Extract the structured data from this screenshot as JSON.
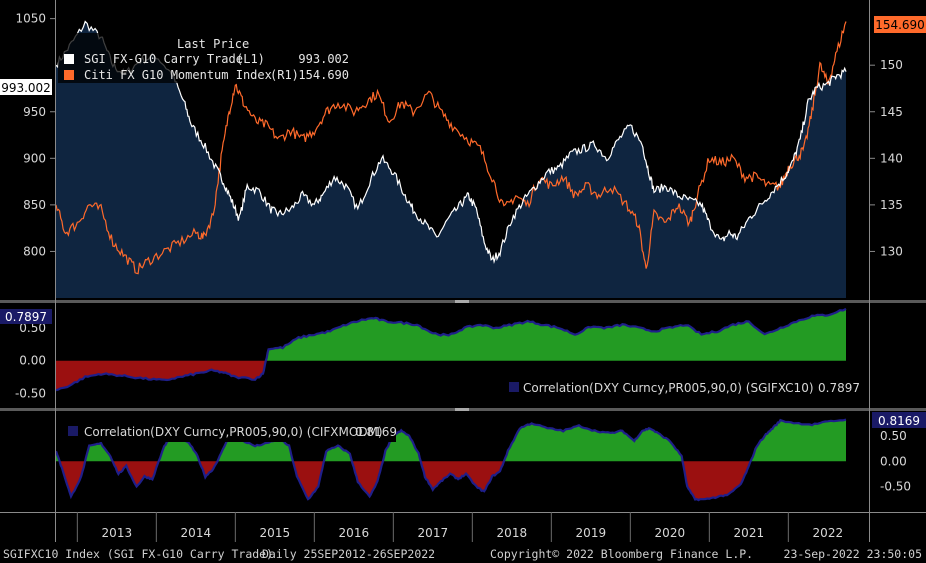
{
  "footer": {
    "security": "SGIFXC10 Index (SGI FX-G10 Carry Trade)",
    "period": "Daily 25SEP2012-26SEP2022",
    "copyright": "Copyright© 2022 Bloomberg Finance L.P.",
    "timestamp": "23-Sep-2022 23:50:05"
  },
  "colors": {
    "background": "#000000",
    "area_fill": "#0f2540",
    "sgi_line": "#ffffff",
    "citi_line": "#ff6a2b",
    "positive_fill": "#239b23",
    "negative_fill": "#9b1010",
    "corr_line": "#1f1f8a",
    "left_label_bg": "#1a1a66",
    "right_label_bg": "#ff6a2b"
  },
  "chart_data": [
    {
      "type": "line",
      "panel": "main",
      "legend_title": "Last Price",
      "legend_position": "top-left",
      "x_labels": [
        "2013",
        "2014",
        "2015",
        "2016",
        "2017",
        "2018",
        "2019",
        "2020",
        "2021",
        "2022"
      ],
      "series": [
        {
          "name": "SGI FX-G10 Carry Trade",
          "axis_tag": "(L1)",
          "last_value": "993.002",
          "axis": "left",
          "style": "white line with navy area fill",
          "points": [
            [
              2012.73,
              1000
            ],
            [
              2012.9,
              1020
            ],
            [
              2013.1,
              1045
            ],
            [
              2013.3,
              1030
            ],
            [
              2013.45,
              1000
            ],
            [
              2013.6,
              990
            ],
            [
              2013.8,
              1005
            ],
            [
              2014.0,
              1010
            ],
            [
              2014.2,
              990
            ],
            [
              2014.35,
              960
            ],
            [
              2014.45,
              935
            ],
            [
              2014.6,
              915
            ],
            [
              2014.75,
              890
            ],
            [
              2014.85,
              875
            ],
            [
              2014.95,
              855
            ],
            [
              2015.05,
              835
            ],
            [
              2015.15,
              870
            ],
            [
              2015.3,
              865
            ],
            [
              2015.45,
              845
            ],
            [
              2015.55,
              840
            ],
            [
              2015.7,
              845
            ],
            [
              2015.85,
              860
            ],
            [
              2016.0,
              850
            ],
            [
              2016.1,
              860
            ],
            [
              2016.25,
              880
            ],
            [
              2016.4,
              870
            ],
            [
              2016.55,
              845
            ],
            [
              2016.7,
              875
            ],
            [
              2016.85,
              900
            ],
            [
              2017.0,
              885
            ],
            [
              2017.15,
              860
            ],
            [
              2017.25,
              845
            ],
            [
              2017.4,
              830
            ],
            [
              2017.55,
              815
            ],
            [
              2017.7,
              835
            ],
            [
              2017.85,
              850
            ],
            [
              2017.95,
              860
            ],
            [
              2018.05,
              845
            ],
            [
              2018.15,
              810
            ],
            [
              2018.25,
              790
            ],
            [
              2018.35,
              800
            ],
            [
              2018.5,
              835
            ],
            [
              2018.65,
              855
            ],
            [
              2018.8,
              870
            ],
            [
              2018.95,
              885
            ],
            [
              2019.1,
              890
            ],
            [
              2019.25,
              905
            ],
            [
              2019.4,
              910
            ],
            [
              2019.55,
              915
            ],
            [
              2019.7,
              900
            ],
            [
              2019.85,
              920
            ],
            [
              2020.0,
              935
            ],
            [
              2020.15,
              915
            ],
            [
              2020.22,
              890
            ],
            [
              2020.3,
              865
            ],
            [
              2020.45,
              870
            ],
            [
              2020.6,
              860
            ],
            [
              2020.75,
              855
            ],
            [
              2020.9,
              850
            ],
            [
              2021.0,
              830
            ],
            [
              2021.15,
              810
            ],
            [
              2021.25,
              820
            ],
            [
              2021.35,
              815
            ],
            [
              2021.5,
              835
            ],
            [
              2021.65,
              850
            ],
            [
              2021.8,
              865
            ],
            [
              2021.95,
              880
            ],
            [
              2022.05,
              895
            ],
            [
              2022.15,
              920
            ],
            [
              2022.25,
              960
            ],
            [
              2022.35,
              975
            ],
            [
              2022.5,
              980
            ],
            [
              2022.6,
              988
            ],
            [
              2022.73,
              993
            ]
          ]
        },
        {
          "name": "Citi FX G10 Momentum Index",
          "axis_tag": "(R1)",
          "last_value": "154.690",
          "axis": "right",
          "style": "orange line",
          "points": [
            [
              2012.73,
              135
            ],
            [
              2012.85,
              132
            ],
            [
              2013.0,
              133
            ],
            [
              2013.15,
              135
            ],
            [
              2013.3,
              134.5
            ],
            [
              2013.45,
              131
            ],
            [
              2013.6,
              129.5
            ],
            [
              2013.75,
              128
            ],
            [
              2013.9,
              129
            ],
            [
              2014.1,
              130
            ],
            [
              2014.3,
              131
            ],
            [
              2014.5,
              132
            ],
            [
              2014.6,
              131.5
            ],
            [
              2014.72,
              134
            ],
            [
              2014.82,
              140
            ],
            [
              2014.92,
              145
            ],
            [
              2015.0,
              148
            ],
            [
              2015.1,
              146
            ],
            [
              2015.25,
              144
            ],
            [
              2015.4,
              143.5
            ],
            [
              2015.55,
              142
            ],
            [
              2015.7,
              143
            ],
            [
              2015.85,
              142
            ],
            [
              2016.0,
              143
            ],
            [
              2016.15,
              145
            ],
            [
              2016.3,
              146
            ],
            [
              2016.5,
              145
            ],
            [
              2016.65,
              146
            ],
            [
              2016.8,
              147
            ],
            [
              2016.95,
              144
            ],
            [
              2017.1,
              146
            ],
            [
              2017.25,
              145
            ],
            [
              2017.45,
              147
            ],
            [
              2017.6,
              145
            ],
            [
              2017.75,
              143.5
            ],
            [
              2017.95,
              142
            ],
            [
              2018.1,
              141
            ],
            [
              2018.25,
              138
            ],
            [
              2018.4,
              134.5
            ],
            [
              2018.55,
              136
            ],
            [
              2018.7,
              135
            ],
            [
              2018.85,
              138
            ],
            [
              2019.0,
              137
            ],
            [
              2019.15,
              138
            ],
            [
              2019.3,
              136
            ],
            [
              2019.45,
              137
            ],
            [
              2019.6,
              136
            ],
            [
              2019.75,
              137
            ],
            [
              2019.95,
              135
            ],
            [
              2020.1,
              133
            ],
            [
              2020.2,
              128
            ],
            [
              2020.3,
              134
            ],
            [
              2020.45,
              133
            ],
            [
              2020.6,
              135
            ],
            [
              2020.75,
              133
            ],
            [
              2020.85,
              136
            ],
            [
              2021.0,
              140
            ],
            [
              2021.15,
              139.5
            ],
            [
              2021.3,
              140
            ],
            [
              2021.45,
              138
            ],
            [
              2021.6,
              138
            ],
            [
              2021.75,
              137
            ],
            [
              2021.9,
              137
            ],
            [
              2022.0,
              139
            ],
            [
              2022.1,
              140
            ],
            [
              2022.2,
              141
            ],
            [
              2022.3,
              145
            ],
            [
              2022.4,
              150
            ],
            [
              2022.5,
              148
            ],
            [
              2022.6,
              151
            ],
            [
              2022.73,
              154.69
            ]
          ]
        }
      ],
      "left_axis": {
        "ticks": [
          "800",
          "850",
          "900",
          "950",
          "1050"
        ],
        "ylim": [
          750,
          1070
        ]
      },
      "right_axis": {
        "ticks": [
          "130",
          "135",
          "140",
          "145",
          "150"
        ],
        "ylim": [
          125,
          157
        ]
      }
    },
    {
      "type": "area",
      "panel": "corr1",
      "label": "Correlation(DXY Curncy,PR005,90,0) (SGIFXC10)",
      "last_value": "0.7897",
      "legend_position": "bottom-right",
      "axis": "left",
      "ticks": [
        "0.50",
        "0.00",
        "-0.50"
      ],
      "ylim": [
        -0.6,
        0.85
      ],
      "points": [
        [
          2012.73,
          -0.45
        ],
        [
          2012.9,
          -0.38
        ],
        [
          2013.1,
          -0.25
        ],
        [
          2013.3,
          -0.2
        ],
        [
          2013.5,
          -0.22
        ],
        [
          2013.7,
          -0.25
        ],
        [
          2013.9,
          -0.28
        ],
        [
          2014.1,
          -0.3
        ],
        [
          2014.3,
          -0.25
        ],
        [
          2014.5,
          -0.2
        ],
        [
          2014.7,
          -0.15
        ],
        [
          2014.85,
          -0.18
        ],
        [
          2015.0,
          -0.25
        ],
        [
          2015.25,
          -0.28
        ],
        [
          2015.35,
          -0.2
        ],
        [
          2015.42,
          0.18
        ],
        [
          2015.6,
          0.2
        ],
        [
          2015.8,
          0.35
        ],
        [
          2016.0,
          0.4
        ],
        [
          2016.2,
          0.45
        ],
        [
          2016.4,
          0.55
        ],
        [
          2016.6,
          0.62
        ],
        [
          2016.75,
          0.65
        ],
        [
          2016.9,
          0.6
        ],
        [
          2017.1,
          0.58
        ],
        [
          2017.3,
          0.55
        ],
        [
          2017.5,
          0.42
        ],
        [
          2017.7,
          0.38
        ],
        [
          2017.9,
          0.5
        ],
        [
          2018.1,
          0.55
        ],
        [
          2018.3,
          0.5
        ],
        [
          2018.5,
          0.55
        ],
        [
          2018.7,
          0.6
        ],
        [
          2018.9,
          0.55
        ],
        [
          2019.1,
          0.5
        ],
        [
          2019.3,
          0.4
        ],
        [
          2019.5,
          0.52
        ],
        [
          2019.7,
          0.5
        ],
        [
          2019.9,
          0.55
        ],
        [
          2020.1,
          0.5
        ],
        [
          2020.3,
          0.45
        ],
        [
          2020.5,
          0.5
        ],
        [
          2020.7,
          0.55
        ],
        [
          2020.9,
          0.4
        ],
        [
          2021.1,
          0.45
        ],
        [
          2021.3,
          0.55
        ],
        [
          2021.5,
          0.6
        ],
        [
          2021.7,
          0.4
        ],
        [
          2021.9,
          0.5
        ],
        [
          2022.1,
          0.6
        ],
        [
          2022.3,
          0.68
        ],
        [
          2022.5,
          0.7
        ],
        [
          2022.73,
          0.79
        ]
      ]
    },
    {
      "type": "area",
      "panel": "corr2",
      "label": "Correlation(DXY Curncy,PR005,90,0) (CIFXMODM)",
      "last_value": "0.8169",
      "legend_position": "top-left",
      "axis": "right",
      "ticks": [
        "0.50",
        "0.00",
        "-0.50"
      ],
      "ylim": [
        -0.9,
        0.95
      ],
      "points": [
        [
          2012.73,
          0.2
        ],
        [
          2012.82,
          -0.2
        ],
        [
          2012.92,
          -0.7
        ],
        [
          2013.05,
          -0.3
        ],
        [
          2013.15,
          0.3
        ],
        [
          2013.3,
          0.35
        ],
        [
          2013.42,
          0.1
        ],
        [
          2013.52,
          -0.25
        ],
        [
          2013.62,
          -0.1
        ],
        [
          2013.75,
          -0.5
        ],
        [
          2013.85,
          -0.3
        ],
        [
          2013.95,
          -0.35
        ],
        [
          2014.1,
          0.3
        ],
        [
          2014.2,
          0.5
        ],
        [
          2014.3,
          0.45
        ],
        [
          2014.42,
          0.35
        ],
        [
          2014.52,
          0.1
        ],
        [
          2014.62,
          -0.3
        ],
        [
          2014.72,
          -0.15
        ],
        [
          2014.82,
          0.15
        ],
        [
          2014.95,
          0.6
        ],
        [
          2015.1,
          0.4
        ],
        [
          2015.25,
          0.3
        ],
        [
          2015.4,
          0.35
        ],
        [
          2015.55,
          0.45
        ],
        [
          2015.68,
          0.3
        ],
        [
          2015.78,
          -0.3
        ],
        [
          2015.92,
          -0.75
        ],
        [
          2016.05,
          -0.5
        ],
        [
          2016.15,
          0.2
        ],
        [
          2016.3,
          0.3
        ],
        [
          2016.45,
          0.15
        ],
        [
          2016.55,
          -0.4
        ],
        [
          2016.7,
          -0.7
        ],
        [
          2016.8,
          -0.4
        ],
        [
          2016.9,
          0.2
        ],
        [
          2017.0,
          0.5
        ],
        [
          2017.1,
          0.6
        ],
        [
          2017.2,
          0.5
        ],
        [
          2017.32,
          0.15
        ],
        [
          2017.4,
          -0.3
        ],
        [
          2017.5,
          -0.55
        ],
        [
          2017.6,
          -0.4
        ],
        [
          2017.72,
          -0.25
        ],
        [
          2017.82,
          -0.35
        ],
        [
          2017.92,
          -0.25
        ],
        [
          2018.05,
          -0.5
        ],
        [
          2018.15,
          -0.6
        ],
        [
          2018.25,
          -0.3
        ],
        [
          2018.35,
          -0.2
        ],
        [
          2018.45,
          0.2
        ],
        [
          2018.6,
          0.65
        ],
        [
          2018.75,
          0.75
        ],
        [
          2018.95,
          0.65
        ],
        [
          2019.15,
          0.6
        ],
        [
          2019.35,
          0.7
        ],
        [
          2019.55,
          0.6
        ],
        [
          2019.75,
          0.55
        ],
        [
          2019.9,
          0.6
        ],
        [
          2020.05,
          0.4
        ],
        [
          2020.15,
          0.6
        ],
        [
          2020.25,
          0.65
        ],
        [
          2020.35,
          0.55
        ],
        [
          2020.5,
          0.4
        ],
        [
          2020.65,
          0.1
        ],
        [
          2020.72,
          -0.5
        ],
        [
          2020.82,
          -0.75
        ],
        [
          2020.95,
          -0.75
        ],
        [
          2021.1,
          -0.7
        ],
        [
          2021.25,
          -0.65
        ],
        [
          2021.4,
          -0.45
        ],
        [
          2021.5,
          -0.1
        ],
        [
          2021.6,
          0.3
        ],
        [
          2021.7,
          0.5
        ],
        [
          2021.8,
          0.65
        ],
        [
          2021.9,
          0.8
        ],
        [
          2022.1,
          0.75
        ],
        [
          2022.3,
          0.72
        ],
        [
          2022.5,
          0.78
        ],
        [
          2022.73,
          0.82
        ]
      ]
    }
  ]
}
